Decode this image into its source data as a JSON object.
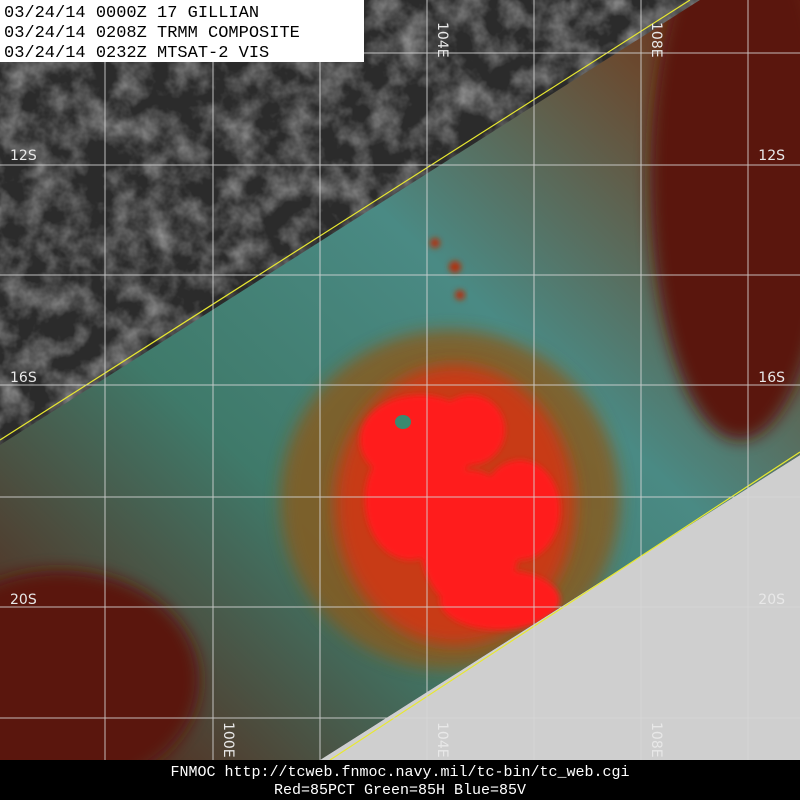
{
  "header": {
    "lines": [
      "03/24/14 0000Z  17 GILLIAN",
      "03/24/14 0208Z  TRMM COMPOSITE",
      "03/24/14 0232Z  MTSAT-2 VIS"
    ]
  },
  "latitude_labels": {
    "left": [
      "12S",
      "16S",
      "20S"
    ],
    "right": [
      "12S",
      "16S",
      "20S"
    ]
  },
  "longitude_labels": {
    "top": [
      "104E",
      "108E"
    ],
    "bottom": [
      "100E",
      "104E",
      "108E"
    ]
  },
  "footer": {
    "lines": [
      "FNMOC http://tcweb.fnmoc.navy.mil/tc-bin/tc_web.cgi",
      "Red=85PCT  Green=85H  Blue=85V"
    ]
  }
}
